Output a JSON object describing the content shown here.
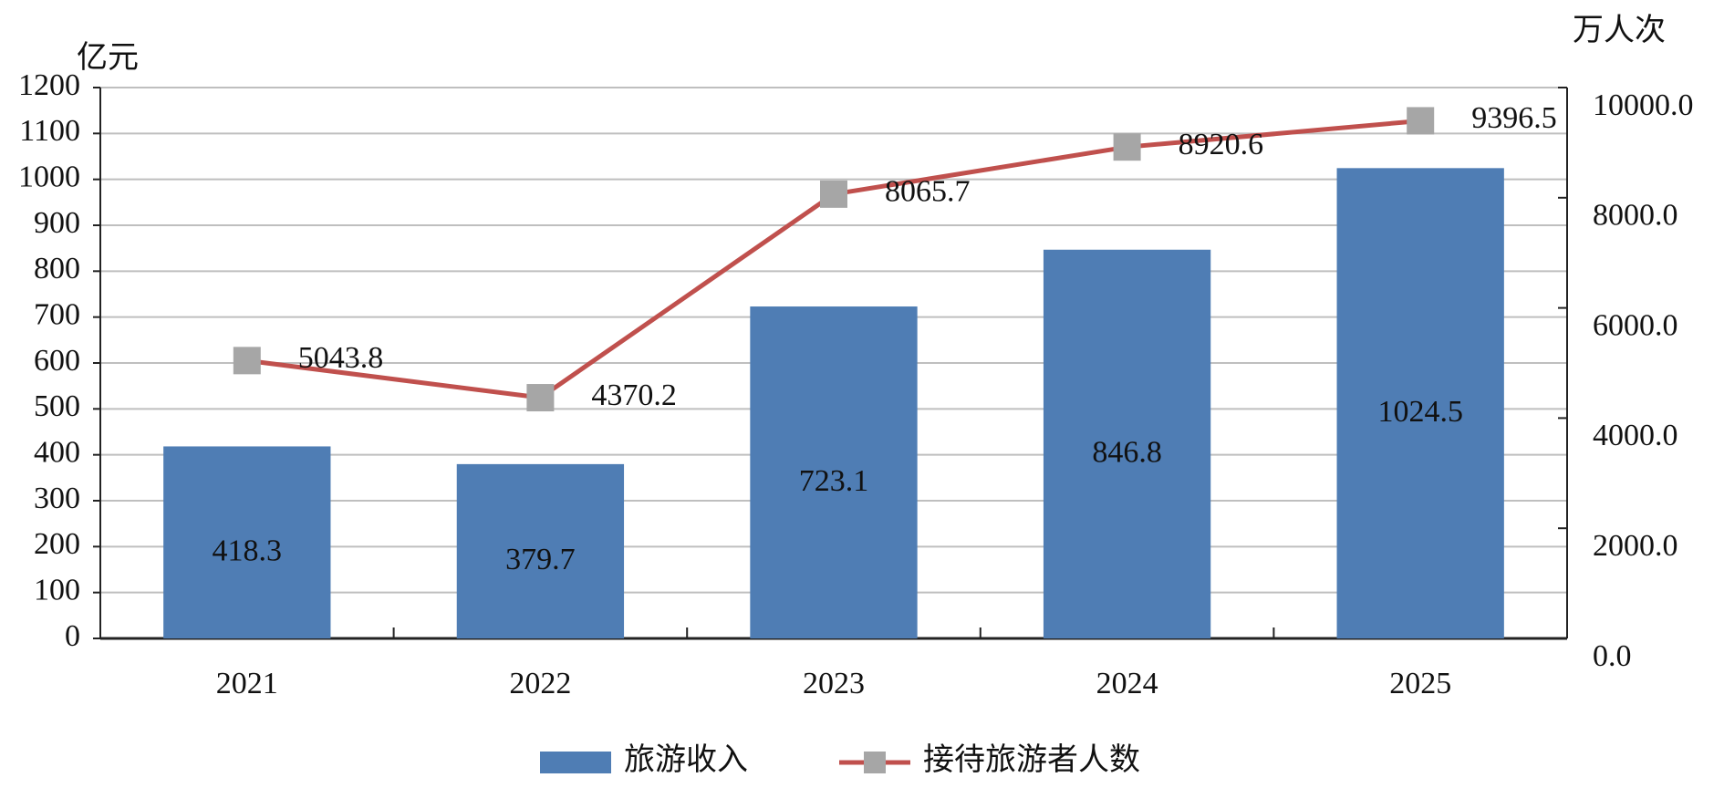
{
  "chart_data": {
    "type": "bar",
    "y_label": "亿元",
    "y2_label": "万人次",
    "categories": [
      "2021",
      "2022",
      "2023",
      "2024",
      "2025"
    ],
    "series": [
      {
        "name": "旅游收入",
        "type": "bar",
        "color": "#4f7db4",
        "values": [
          418.3,
          379.7,
          723.1,
          846.8,
          1024.5
        ]
      },
      {
        "name": "接待旅游者人数",
        "type": "line",
        "axis": "y2",
        "color": "#c0504d",
        "marker_color": "#a6a6a6",
        "values": [
          5043.8,
          4370.2,
          8065.7,
          8920.6,
          9396.5
        ]
      }
    ],
    "ylim": [
      0,
      1200
    ],
    "yticks": [
      0,
      100,
      200,
      300,
      400,
      500,
      600,
      700,
      800,
      900,
      1000,
      1100,
      1200
    ],
    "y2lim": [
      0,
      10000
    ],
    "y2ticks": [
      {
        "value": 0,
        "label": "0.0"
      },
      {
        "value": 2000,
        "label": "2000.0"
      },
      {
        "value": 4000,
        "label": "4000.0"
      },
      {
        "value": 6000,
        "label": "6000.0"
      },
      {
        "value": 8000,
        "label": "8000.0"
      },
      {
        "value": 10000,
        "label": "10000.0"
      }
    ],
    "grid": true,
    "legend": "bottom"
  }
}
